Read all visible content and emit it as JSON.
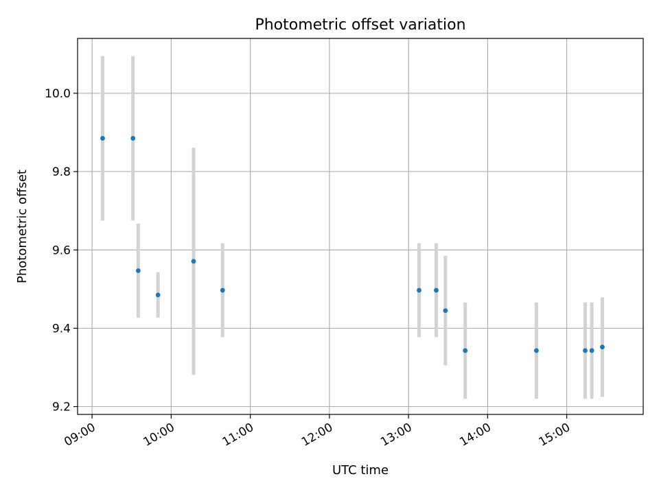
{
  "chart_data": {
    "type": "scatter",
    "title": "Photometric offset variation",
    "xlabel": "UTC time",
    "ylabel": "Photometric offset",
    "x_ticks": [
      "09:00",
      "10:00",
      "11:00",
      "12:00",
      "13:00",
      "14:00",
      "15:00"
    ],
    "y_ticks": [
      "9.2",
      "9.4",
      "9.6",
      "9.8",
      "10.0"
    ],
    "xlim": [
      "08:49",
      "15:58"
    ],
    "ylim": [
      9.18,
      10.14
    ],
    "grid": true,
    "points": [
      {
        "x": "09:08",
        "y": 9.885,
        "err": 0.21
      },
      {
        "x": "09:31",
        "y": 9.885,
        "err": 0.21
      },
      {
        "x": "09:35",
        "y": 9.547,
        "err": 0.12
      },
      {
        "x": "09:50",
        "y": 9.485,
        "err": 0.058
      },
      {
        "x": "10:17",
        "y": 9.571,
        "err": 0.29
      },
      {
        "x": "10:39",
        "y": 9.497,
        "err": 0.12
      },
      {
        "x": "13:08",
        "y": 9.497,
        "err": 0.12
      },
      {
        "x": "13:21",
        "y": 9.497,
        "err": 0.12
      },
      {
        "x": "13:28",
        "y": 9.445,
        "err": 0.14
      },
      {
        "x": "13:43",
        "y": 9.343,
        "err": 0.123
      },
      {
        "x": "14:37",
        "y": 9.343,
        "err": 0.123
      },
      {
        "x": "15:14",
        "y": 9.343,
        "err": 0.123
      },
      {
        "x": "15:19",
        "y": 9.343,
        "err": 0.123
      },
      {
        "x": "15:27",
        "y": 9.352,
        "err": 0.127
      }
    ],
    "colors": {
      "marker": "#1f77b4",
      "errorbar": "#d3d3d3",
      "grid": "#b0b0b0",
      "frame": "#000000"
    }
  }
}
